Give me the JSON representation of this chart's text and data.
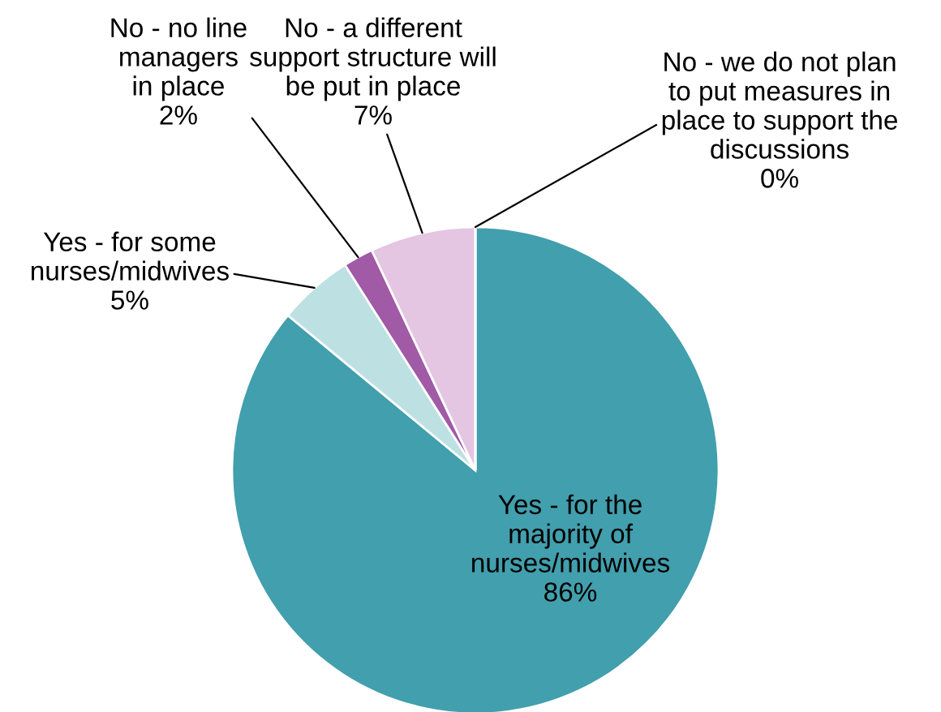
{
  "chart_data": {
    "type": "pie",
    "categories": [
      "Yes - for the\nmajority of\nnurses/midwives",
      "Yes - for some\nnurses/midwives",
      "No - no line\nmanagers\nin place",
      "No - a different\nsupport structure will\nbe put in place",
      "No - we do not plan\nto put measures in\nplace to support the\ndiscussions"
    ],
    "values": [
      86,
      5,
      2,
      7,
      0
    ],
    "colors": [
      "#429fad",
      "#bde0e3",
      "#a05aa6",
      "#e4c5e2",
      "#d9d9d9"
    ],
    "value_labels": [
      "86%",
      "5%",
      "2%",
      "7%",
      "0%"
    ]
  }
}
